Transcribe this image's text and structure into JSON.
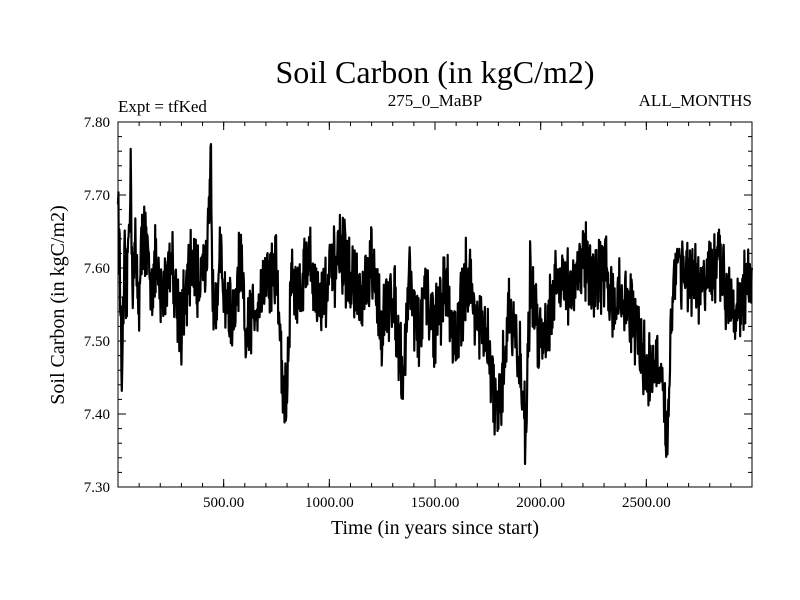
{
  "chart_data": {
    "type": "line",
    "title": "Soil Carbon (in kgC/m2)",
    "subtitle_left": "Expt = tfKed",
    "subtitle_center": "275_0_MaBP",
    "subtitle_right": "ALL_MONTHS",
    "xlabel": "Time (in years since start)",
    "ylabel": "Soil Carbon (in kgC/m2)",
    "xlim": [
      0,
      3000
    ],
    "ylim": [
      7.3,
      7.8
    ],
    "xticks": [
      500,
      1000,
      1500,
      2000,
      2500
    ],
    "xtick_labels": [
      "500.00",
      "1000.00",
      "1500.00",
      "2000.00",
      "2500.00"
    ],
    "yticks": [
      7.3,
      7.4,
      7.5,
      7.6,
      7.7,
      7.8
    ],
    "ytick_labels": [
      "7.30",
      "7.40",
      "7.50",
      "7.60",
      "7.70",
      "7.80"
    ],
    "grid": false,
    "series": [
      {
        "color": "#000000",
        "x": [
          0,
          10,
          20,
          30,
          40,
          50,
          60,
          70,
          80,
          100,
          120,
          150,
          180,
          200,
          250,
          300,
          350,
          380,
          400,
          420,
          440,
          450,
          480,
          500,
          550,
          580,
          600,
          650,
          700,
          750,
          780,
          800,
          820,
          850,
          900,
          950,
          1000,
          1050,
          1100,
          1150,
          1200,
          1250,
          1300,
          1350,
          1380,
          1400,
          1420,
          1450,
          1500,
          1550,
          1600,
          1650,
          1700,
          1750,
          1800,
          1850,
          1900,
          1930,
          1950,
          2000,
          2050,
          2100,
          2150,
          2200,
          2250,
          2300,
          2350,
          2400,
          2450,
          2500,
          2550,
          2580,
          2600,
          2620,
          2650,
          2700,
          2750,
          2800,
          2850,
          2900,
          2950,
          3000
        ],
        "y": [
          7.71,
          7.57,
          7.44,
          7.6,
          7.55,
          7.65,
          7.73,
          7.58,
          7.62,
          7.56,
          7.66,
          7.58,
          7.6,
          7.55,
          7.62,
          7.52,
          7.61,
          7.57,
          7.63,
          7.58,
          7.74,
          7.55,
          7.61,
          7.57,
          7.52,
          7.62,
          7.5,
          7.55,
          7.59,
          7.6,
          7.43,
          7.42,
          7.6,
          7.56,
          7.62,
          7.55,
          7.58,
          7.62,
          7.59,
          7.55,
          7.6,
          7.52,
          7.57,
          7.45,
          7.6,
          7.55,
          7.5,
          7.56,
          7.52,
          7.58,
          7.49,
          7.6,
          7.53,
          7.49,
          7.38,
          7.55,
          7.47,
          7.38,
          7.58,
          7.5,
          7.55,
          7.6,
          7.56,
          7.62,
          7.58,
          7.6,
          7.55,
          7.56,
          7.52,
          7.46,
          7.47,
          7.41,
          7.37,
          7.56,
          7.62,
          7.58,
          7.57,
          7.59,
          7.6,
          7.56,
          7.55,
          7.6
        ]
      }
    ]
  }
}
